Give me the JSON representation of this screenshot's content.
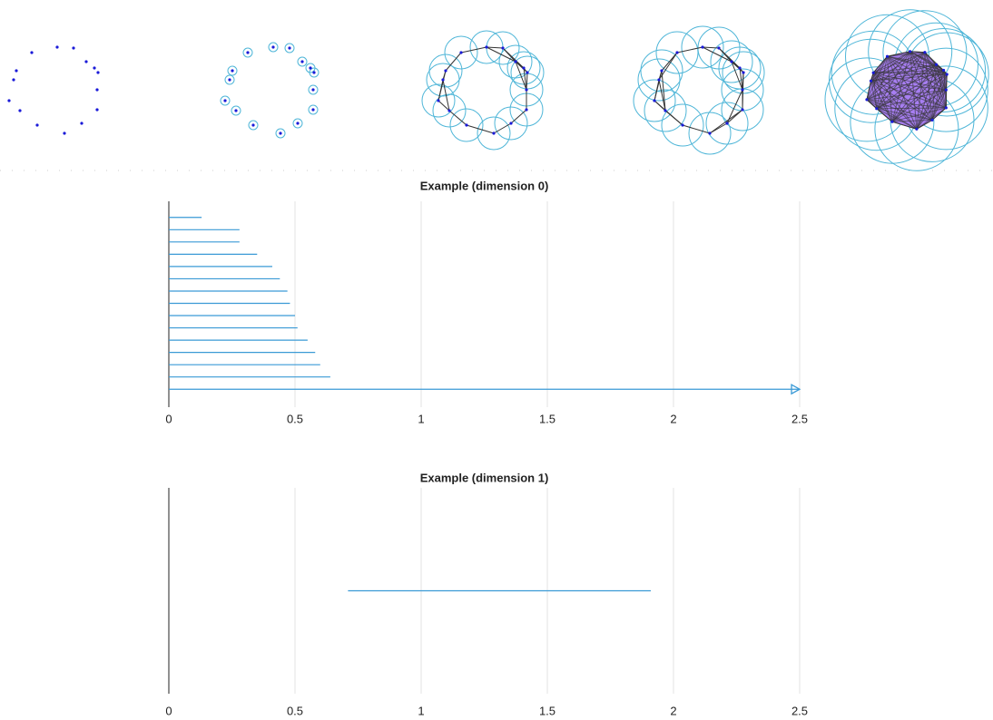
{
  "chart_data": [
    {
      "type": "barcode",
      "title": "Example (dimension 0)",
      "bars": [
        [
          0,
          0.13
        ],
        [
          0,
          0.28
        ],
        [
          0,
          0.28
        ],
        [
          0,
          0.35
        ],
        [
          0,
          0.41
        ],
        [
          0,
          0.44
        ],
        [
          0,
          0.47
        ],
        [
          0,
          0.48
        ],
        [
          0,
          0.5
        ],
        [
          0,
          0.51
        ],
        [
          0,
          0.55
        ],
        [
          0,
          0.58
        ],
        [
          0,
          0.6
        ],
        [
          0,
          0.64
        ],
        [
          0,
          null
        ]
      ],
      "color": "#3a9ad6",
      "xlim": [
        0,
        2.5
      ],
      "xticks": [
        0,
        0.5,
        1,
        1.5,
        2,
        2.5
      ],
      "grid": true
    },
    {
      "type": "barcode",
      "title": "Example (dimension 1)",
      "bars": [
        [
          0.71,
          1.91
        ]
      ],
      "color": "#3a9ad6",
      "xlim": [
        0,
        2.5
      ],
      "xticks": [
        0,
        0.5,
        1,
        1.5,
        2,
        2.5
      ],
      "grid": true
    }
  ]
}
